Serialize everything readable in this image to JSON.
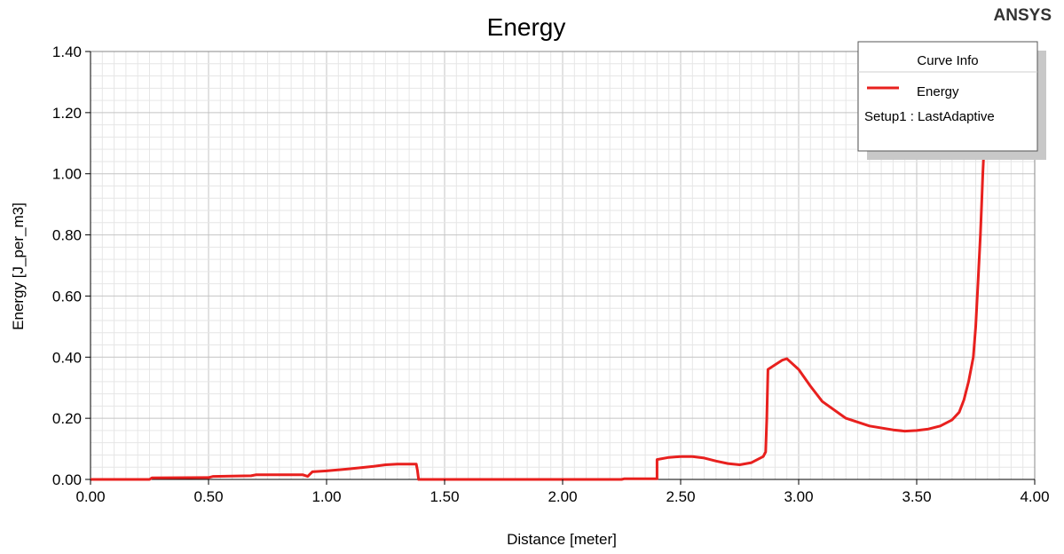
{
  "chart_data": {
    "type": "line",
    "title": "Energy",
    "brand": "ANSYS",
    "xlabel": "Distance [meter]",
    "ylabel": "Energy [J_per_m3]",
    "xlim": [
      0,
      4
    ],
    "ylim": [
      0,
      1.4
    ],
    "x_ticks": [
      "0.00",
      "0.50",
      "1.00",
      "1.50",
      "2.00",
      "2.50",
      "3.00",
      "3.50",
      "4.00"
    ],
    "y_ticks": [
      "0.00",
      "0.20",
      "0.40",
      "0.60",
      "0.80",
      "1.00",
      "1.20",
      "1.40"
    ],
    "grid": true,
    "legend": {
      "title": "Curve Info",
      "placement": "top-right",
      "entries": [
        {
          "name": "Energy",
          "sub": "Setup1 : LastAdaptive"
        }
      ]
    },
    "series": [
      {
        "name": "Energy",
        "color": "#e8201e",
        "x": [
          0.0,
          0.25,
          0.26,
          0.5,
          0.52,
          0.68,
          0.7,
          0.9,
          0.92,
          0.94,
          1.0,
          1.1,
          1.2,
          1.25,
          1.3,
          1.38,
          1.385,
          1.39,
          2.0,
          2.25,
          2.26,
          2.4,
          2.4,
          2.45,
          2.5,
          2.55,
          2.6,
          2.65,
          2.7,
          2.75,
          2.8,
          2.85,
          2.86,
          2.865,
          2.87,
          2.9,
          2.93,
          2.95,
          3.0,
          3.05,
          3.1,
          3.2,
          3.3,
          3.4,
          3.45,
          3.5,
          3.55,
          3.6,
          3.65,
          3.68,
          3.7,
          3.72,
          3.74,
          3.75,
          3.76,
          3.77,
          3.775,
          3.78,
          3.785,
          3.79,
          3.79
        ],
        "y": [
          0.0,
          0.0,
          0.005,
          0.006,
          0.01,
          0.012,
          0.015,
          0.015,
          0.01,
          0.025,
          0.028,
          0.035,
          0.043,
          0.048,
          0.05,
          0.05,
          0.03,
          0.0,
          0.0,
          0.0,
          0.002,
          0.002,
          0.065,
          0.072,
          0.075,
          0.075,
          0.07,
          0.06,
          0.052,
          0.048,
          0.055,
          0.075,
          0.09,
          0.2,
          0.36,
          0.375,
          0.39,
          0.395,
          0.36,
          0.305,
          0.255,
          0.2,
          0.175,
          0.162,
          0.158,
          0.16,
          0.165,
          0.175,
          0.195,
          0.22,
          0.26,
          0.32,
          0.4,
          0.5,
          0.65,
          0.8,
          0.9,
          1.0,
          1.08,
          1.15,
          1.2
        ]
      }
    ]
  }
}
